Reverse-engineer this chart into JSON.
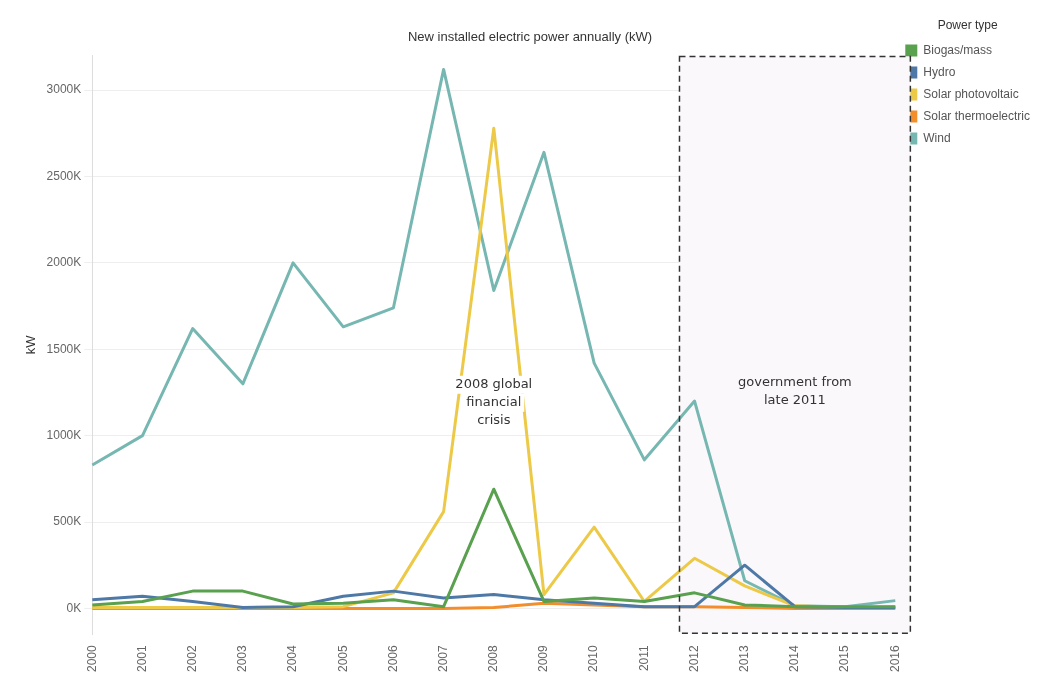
{
  "chart_data": {
    "type": "line",
    "title": "New installed electric power annually (kW)",
    "ylabel": "kW",
    "legend_title": "Power type",
    "legend": "top right",
    "grid": "y",
    "marker": "none",
    "line_style": "solid",
    "categories": [
      "2000",
      "2001",
      "2002",
      "2003",
      "2004",
      "2005",
      "2006",
      "2007",
      "2008",
      "2009",
      "2010",
      "2011",
      "2012",
      "2013",
      "2014",
      "2015",
      "2016"
    ],
    "ylim": [
      -150000,
      3200000
    ],
    "yticks": [
      {
        "value": 0,
        "label": "0K"
      },
      {
        "value": 500000,
        "label": "500K"
      },
      {
        "value": 1000000,
        "label": "1000K"
      },
      {
        "value": 1500000,
        "label": "1500K"
      },
      {
        "value": 2000000,
        "label": "2000K"
      },
      {
        "value": 2500000,
        "label": "2500K"
      },
      {
        "value": 3000000,
        "label": "3000K"
      }
    ],
    "series": [
      {
        "name": "Biogas/mass",
        "color": "#59a14f",
        "values": [
          20000,
          40000,
          100000,
          100000,
          25000,
          30000,
          50000,
          10000,
          690000,
          40000,
          60000,
          40000,
          90000,
          20000,
          10000,
          10000,
          10000
        ]
      },
      {
        "name": "Hydro",
        "color": "#4e79a7",
        "values": [
          50000,
          70000,
          40000,
          5000,
          10000,
          70000,
          100000,
          60000,
          80000,
          50000,
          30000,
          10000,
          10000,
          250000,
          10000,
          5000,
          5000
        ]
      },
      {
        "name": "Solar photovoltaic",
        "color": "#edc948",
        "values": [
          5000,
          5000,
          5000,
          5000,
          5000,
          10000,
          90000,
          560000,
          2780000,
          80000,
          470000,
          40000,
          290000,
          130000,
          15000,
          5000,
          10000
        ]
      },
      {
        "name": "Solar thermoelectric",
        "color": "#f28e2b",
        "values": [
          0,
          0,
          0,
          0,
          0,
          0,
          0,
          0,
          5000,
          30000,
          20000,
          10000,
          10000,
          5000,
          0,
          0,
          0
        ]
      },
      {
        "name": "Wind",
        "color": "#76b7b2",
        "values": [
          830000,
          1000000,
          1620000,
          1300000,
          2000000,
          1630000,
          1740000,
          3120000,
          1840000,
          2640000,
          1420000,
          860000,
          1200000,
          160000,
          15000,
          10000,
          45000
        ]
      }
    ],
    "annotations": [
      "2008 global\nfinancial\ncrisis"
    ],
    "bands": [
      {
        "axis": "x",
        "from": "2012",
        "to": "2016",
        "label": "government from\nlate 2011",
        "color": "#fbf8fb"
      }
    ]
  }
}
